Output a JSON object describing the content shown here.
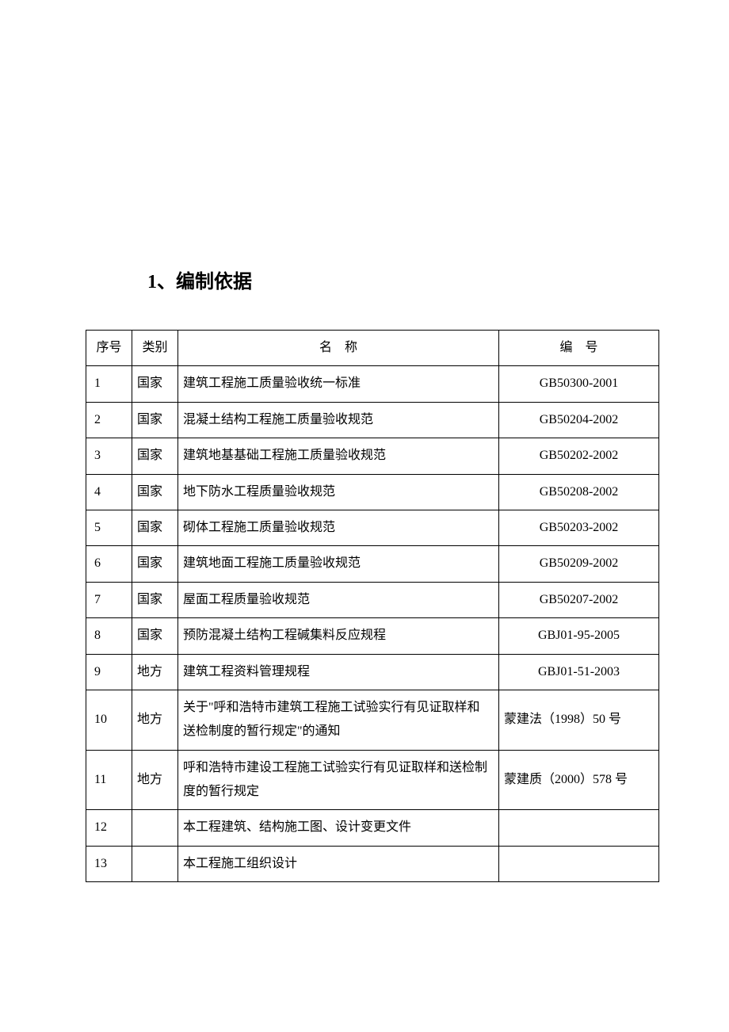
{
  "document": {
    "heading": "1、编制依据",
    "table": {
      "columns": {
        "seq": "序号",
        "cat": "类别",
        "name": "名　称",
        "num": "编　号"
      },
      "rows": [
        {
          "seq": "1",
          "cat": "国家",
          "name": "建筑工程施工质量验收统一标准",
          "num": "GB50300-2001",
          "numAlign": "center"
        },
        {
          "seq": "2",
          "cat": "国家",
          "name": "混凝土结构工程施工质量验收规范",
          "num": "GB50204-2002",
          "numAlign": "center"
        },
        {
          "seq": "3",
          "cat": "国家",
          "name": "建筑地基基础工程施工质量验收规范",
          "num": "GB50202-2002",
          "numAlign": "center"
        },
        {
          "seq": "4",
          "cat": "国家",
          "name": "地下防水工程质量验收规范",
          "num": "GB50208-2002",
          "numAlign": "center"
        },
        {
          "seq": "5",
          "cat": "国家",
          "name": "砌体工程施工质量验收规范",
          "num": "GB50203-2002",
          "numAlign": "center"
        },
        {
          "seq": "6",
          "cat": "国家",
          "name": "建筑地面工程施工质量验收规范",
          "num": "GB50209-2002",
          "numAlign": "center"
        },
        {
          "seq": "7",
          "cat": "国家",
          "name": "屋面工程质量验收规范",
          "num": "GB50207-2002",
          "numAlign": "center"
        },
        {
          "seq": "8",
          "cat": "国家",
          "name": "预防混凝土结构工程碱集料反应规程",
          "num": "GBJ01-95-2005",
          "numAlign": "center"
        },
        {
          "seq": "9",
          "cat": "地方",
          "name": "建筑工程资料管理规程",
          "num": "GBJ01-51-2003",
          "numAlign": "center"
        },
        {
          "seq": "10",
          "cat": "地方",
          "name": "关于\"呼和浩特市建筑工程施工试验实行有见证取样和送检制度的暂行规定\"的通知",
          "num": "蒙建法（1998）50 号",
          "numAlign": "left"
        },
        {
          "seq": "11",
          "cat": "地方",
          "name": "呼和浩特市建设工程施工试验实行有见证取样和送检制度的暂行规定",
          "num": "蒙建质（2000）578 号",
          "numAlign": "left"
        },
        {
          "seq": "12",
          "cat": "",
          "name": "本工程建筑、结构施工图、设计变更文件",
          "num": "",
          "numAlign": "center"
        },
        {
          "seq": "13",
          "cat": "",
          "name": "本工程施工组织设计",
          "num": "",
          "numAlign": "center"
        }
      ]
    },
    "styling": {
      "background_color": "#ffffff",
      "text_color": "#000000",
      "border_color": "#000000",
      "heading_fontsize": 24,
      "cell_fontsize": 16,
      "font_family": "SimSun"
    }
  }
}
